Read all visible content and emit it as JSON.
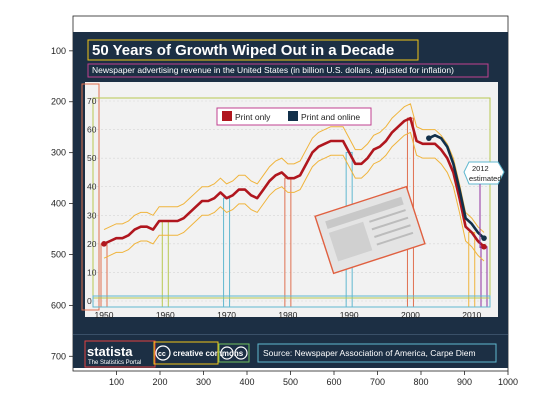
{
  "chart_data": {
    "type": "line",
    "title": "50 Years of Growth Wiped Out in a Decade",
    "subtitle": "Newspaper advertising revenue in the United States (in billion U.S. dollars, adjusted for inflation)",
    "x_ticks": [
      "1950",
      "1960",
      "1970",
      "1980",
      "1990",
      "2000",
      "2010"
    ],
    "y_ticks": [
      "0",
      "10",
      "20",
      "30",
      "40",
      "50",
      "60",
      "70"
    ],
    "ylim": [
      0,
      70
    ],
    "xlim": [
      1950,
      2012
    ],
    "legend": [
      {
        "label": "Print only",
        "color": "#b0161e"
      },
      {
        "label": "Print and online",
        "color": "#12304a"
      }
    ],
    "series": [
      {
        "name": "Print only",
        "color": "#b0161e",
        "points": [
          [
            1950,
            20
          ],
          [
            1951,
            21
          ],
          [
            1952,
            22
          ],
          [
            1953,
            22
          ],
          [
            1954,
            23
          ],
          [
            1955,
            25
          ],
          [
            1956,
            26
          ],
          [
            1957,
            26
          ],
          [
            1958,
            25
          ],
          [
            1959,
            28
          ],
          [
            1960,
            28
          ],
          [
            1961,
            28
          ],
          [
            1962,
            28
          ],
          [
            1963,
            29
          ],
          [
            1964,
            31
          ],
          [
            1965,
            33
          ],
          [
            1966,
            35
          ],
          [
            1967,
            35
          ],
          [
            1968,
            36
          ],
          [
            1969,
            38
          ],
          [
            1970,
            36
          ],
          [
            1971,
            37
          ],
          [
            1972,
            39
          ],
          [
            1973,
            39
          ],
          [
            1974,
            37
          ],
          [
            1975,
            36
          ],
          [
            1976,
            39
          ],
          [
            1977,
            42
          ],
          [
            1978,
            44
          ],
          [
            1979,
            45
          ],
          [
            1980,
            43
          ],
          [
            1981,
            43
          ],
          [
            1982,
            44
          ],
          [
            1983,
            48
          ],
          [
            1984,
            52
          ],
          [
            1985,
            54
          ],
          [
            1986,
            55
          ],
          [
            1987,
            56
          ],
          [
            1988,
            56
          ],
          [
            1989,
            56
          ],
          [
            1990,
            52
          ],
          [
            1991,
            48
          ],
          [
            1992,
            48
          ],
          [
            1993,
            50
          ],
          [
            1994,
            53
          ],
          [
            1995,
            54
          ],
          [
            1996,
            56
          ],
          [
            1997,
            59
          ],
          [
            1998,
            61
          ],
          [
            1999,
            63
          ],
          [
            2000,
            64
          ],
          [
            2001,
            56
          ],
          [
            2002,
            55
          ],
          [
            2003,
            55
          ],
          [
            2004,
            55
          ],
          [
            2005,
            53
          ],
          [
            2006,
            50
          ],
          [
            2007,
            45
          ],
          [
            2008,
            36
          ],
          [
            2009,
            26
          ],
          [
            2010,
            24
          ],
          [
            2011,
            21
          ],
          [
            2012,
            19
          ]
        ]
      },
      {
        "name": "Print and online",
        "color": "#12304a",
        "points": [
          [
            2003,
            57
          ],
          [
            2004,
            58
          ],
          [
            2005,
            57
          ],
          [
            2006,
            54
          ],
          [
            2007,
            48
          ],
          [
            2008,
            39
          ],
          [
            2009,
            29
          ],
          [
            2010,
            27
          ],
          [
            2011,
            24
          ],
          [
            2012,
            22
          ]
        ]
      }
    ],
    "annotation": "2012 estimated",
    "grid": true
  },
  "axes": {
    "x_ticks": [
      "100",
      "200",
      "300",
      "400",
      "500",
      "600",
      "700",
      "800",
      "900",
      "1000"
    ],
    "y_ticks": [
      "100",
      "200",
      "300",
      "400",
      "500",
      "600",
      "700"
    ]
  },
  "footer": {
    "brand": "statista",
    "brand_sub": "The Statistics Portal",
    "cc": "creative commons",
    "source": "Source: Newspaper Association of America, Carpe Diem"
  },
  "colors": {
    "banner": "#1c2f44",
    "plot_bg": "#f2f2f2",
    "print_only": "#b0161e",
    "print_online": "#12304a",
    "envelope": "#f0b43c"
  }
}
